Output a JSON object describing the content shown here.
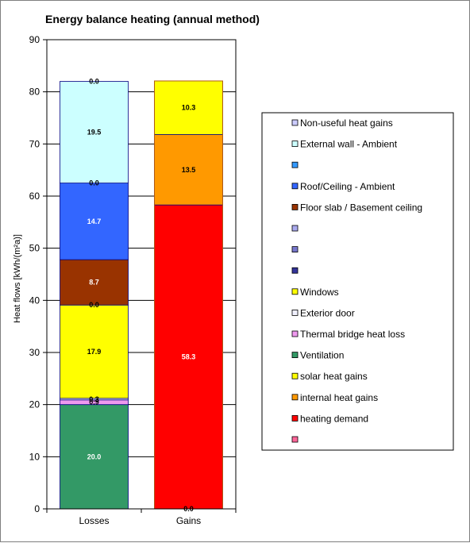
{
  "chart_data": {
    "type": "bar",
    "stacked": true,
    "title": "Energy balance heating (annual method)",
    "ylabel": "Heat flows [kWh/(m²a)]",
    "xlabel": "",
    "ylim": [
      0,
      90
    ],
    "yticks": [
      0,
      10,
      20,
      30,
      40,
      50,
      60,
      70,
      80,
      90
    ],
    "grid": true,
    "legend_position": "right",
    "categories": [
      "Losses",
      "Gains"
    ],
    "series": [
      {
        "name": "Non-useful heat gains",
        "color": "#ccccff",
        "values": [
          0,
          0
        ],
        "labels": [
          "",
          ""
        ]
      },
      {
        "name": "External wall - Ambient",
        "color": "#ccffff",
        "values": [
          19.5,
          0
        ],
        "labels": [
          "19.5",
          ""
        ]
      },
      {
        "name": "",
        "color": "#3399ff",
        "values": [
          0,
          0
        ],
        "labels": [
          "",
          ""
        ]
      },
      {
        "name": "Roof/Ceiling - Ambient",
        "color": "#3366ff",
        "values": [
          14.7,
          0
        ],
        "labels": [
          "14.7",
          ""
        ]
      },
      {
        "name": "Floor slab / Basement ceiling",
        "color": "#993300",
        "values": [
          8.7,
          0
        ],
        "labels": [
          "8.7",
          ""
        ]
      },
      {
        "name": "",
        "color": "#aaaaee",
        "values": [
          0,
          0
        ],
        "labels": [
          "",
          ""
        ]
      },
      {
        "name": "",
        "color": "#7777cc",
        "values": [
          0,
          0
        ],
        "labels": [
          "",
          ""
        ]
      },
      {
        "name": "",
        "color": "#333399",
        "values": [
          0,
          0
        ],
        "labels": [
          "",
          ""
        ]
      },
      {
        "name": "Windows",
        "color": "#ffff00",
        "values": [
          17.9,
          0
        ],
        "labels": [
          "17.9",
          ""
        ]
      },
      {
        "name": "Exterior door",
        "color": "#f0f0ff",
        "values": [
          0.3,
          0
        ],
        "labels": [
          "0.3",
          ""
        ]
      },
      {
        "name": "Thermal bridge heat loss",
        "color": "#ee99ee",
        "values": [
          0.9,
          0
        ],
        "labels": [
          "0.9",
          ""
        ]
      },
      {
        "name": "Ventilation",
        "color": "#339966",
        "values": [
          20.0,
          0
        ],
        "labels": [
          "20.0",
          ""
        ]
      },
      {
        "name": "solar heat gains",
        "color": "#ffff00",
        "values": [
          0,
          10.3
        ],
        "labels": [
          "",
          "10.3"
        ]
      },
      {
        "name": "internal heat gains",
        "color": "#ff9900",
        "values": [
          0,
          13.5
        ],
        "labels": [
          "",
          "13.5"
        ]
      },
      {
        "name": "heating demand",
        "color": "#ff0000",
        "values": [
          0,
          58.3
        ],
        "labels": [
          "",
          "58.3"
        ]
      },
      {
        "name": "",
        "color": "#ff6699",
        "values": [
          0,
          0
        ],
        "labels": [
          "",
          ""
        ]
      }
    ],
    "stack_order": {
      "Losses": [
        "Ventilation",
        "Thermal bridge heat loss",
        "Exterior door",
        "Windows",
        "Floor slab / Basement ceiling",
        "Roof/Ceiling - Ambient",
        "External wall - Ambient",
        "Non-useful heat gains"
      ],
      "Gains": [
        "heating demand",
        "internal heat gains",
        "solar heat gains"
      ]
    },
    "zero_labels": [
      {
        "category": "Losses",
        "at": 82.0,
        "text": "0.0"
      },
      {
        "category": "Losses",
        "at": 62.5,
        "text": "0.0"
      },
      {
        "category": "Losses",
        "at": 39.1,
        "text": "0.0"
      },
      {
        "category": "Gains",
        "at": 0,
        "text": "0.0"
      }
    ]
  }
}
